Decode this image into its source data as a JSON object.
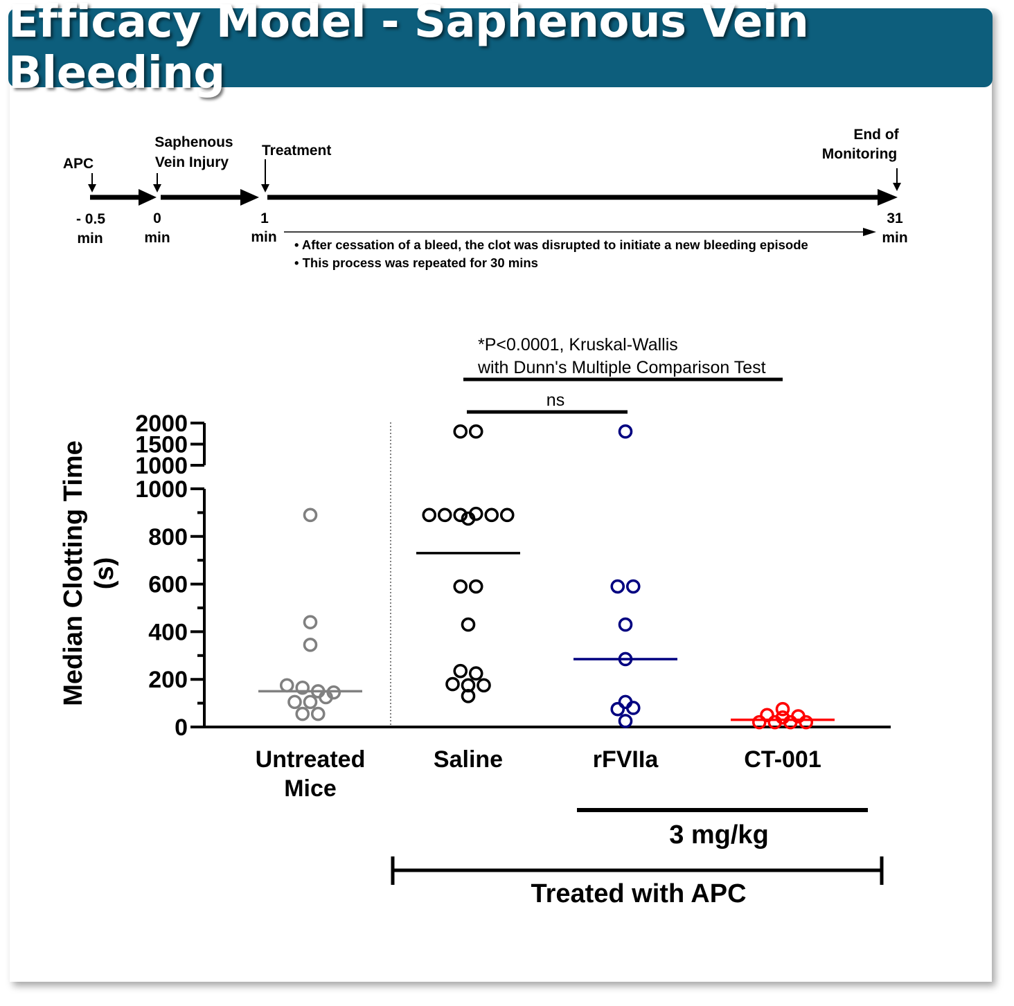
{
  "title": "Efficacy Model - Saphenous Vein Bleeding",
  "timeline": {
    "events": [
      {
        "label": "APC",
        "time_label": [
          "- 0.5",
          "min"
        ]
      },
      {
        "label": [
          "Saphenous",
          "Vein Injury"
        ],
        "time_label": [
          "0",
          "min"
        ]
      },
      {
        "label": "Treatment",
        "time_label": [
          "1",
          "min"
        ]
      },
      {
        "label": [
          "End of",
          "Monitoring"
        ],
        "time_label": [
          "31",
          "min"
        ]
      }
    ],
    "notes": [
      "• After cessation of a bleed, the clot was  disrupted to initiate a  new bleeding episode",
      "• This process was  repeated for 30 mins"
    ]
  },
  "chart_data": {
    "type": "scatter",
    "ylabel": [
      "Median Clotting Time",
      "(s)"
    ],
    "y_axis_lower": {
      "range": [
        0,
        1000
      ],
      "ticks": [
        0,
        200,
        400,
        600,
        800,
        1000
      ],
      "labels": [
        "0",
        "200",
        "400",
        "600",
        "800",
        "1000"
      ]
    },
    "y_axis_upper": {
      "range": [
        1000,
        2000
      ],
      "labels": [
        "2000",
        "1500",
        "1000"
      ]
    },
    "categories": [
      "Untreated Mice",
      "Saline",
      "rFVIIa",
      "CT-001"
    ],
    "category_label_lines": [
      [
        "Untreated",
        "Mice"
      ],
      [
        "Saline"
      ],
      [
        "rFVIIa"
      ],
      [
        "CT-001"
      ]
    ],
    "series": [
      {
        "name": "Untreated Mice",
        "color": "#808080",
        "values": [
          890,
          440,
          345,
          175,
          165,
          150,
          145,
          105,
          105,
          55,
          55,
          125
        ],
        "median": 150
      },
      {
        "name": "Saline",
        "color": "#000000",
        "values": [
          1800,
          1800,
          890,
          890,
          875,
          890,
          895,
          890,
          890,
          590,
          590,
          430,
          235,
          225,
          180,
          175,
          175,
          130
        ],
        "median": 730
      },
      {
        "name": "rFVIIa",
        "color": "#000080",
        "values": [
          1800,
          590,
          590,
          430,
          285,
          105,
          75,
          80,
          25
        ],
        "median": 285
      },
      {
        "name": "CT-001",
        "color": "#ff0000",
        "values": [
          20,
          50,
          20,
          40,
          75,
          20,
          45,
          20
        ],
        "median": 30
      }
    ],
    "annotations": {
      "stats_text": [
        "*P<0.0001, Kruskal-Wallis",
        "with Dunn's Multiple Comparison Test"
      ],
      "ns_text": "ns",
      "dose_text": "3 mg/kg",
      "group_text": "Treated with APC"
    }
  }
}
